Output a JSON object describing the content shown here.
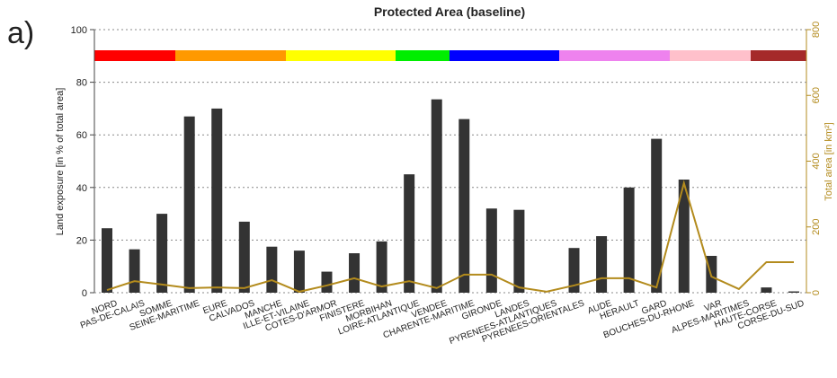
{
  "panel_label": "a)",
  "chart_data": {
    "type": "bar",
    "title": "Protected Area (baseline)",
    "ylabel": "Land exposure [in % of total area]",
    "y2label": "Total area [in km²]",
    "categories": [
      "NORD",
      "PAS-DE-CALAIS",
      "SOMME",
      "SEINE-MARITIME",
      "EURE",
      "CALVADOS",
      "MANCHE",
      "ILLE-ET-VILAINE",
      "COTES-D'ARMOR",
      "FINISTERE",
      "MORBIHAN",
      "LOIRE-ATLANTIQUE",
      "VENDEE",
      "CHARENTE-MARITIME",
      "GIRONDE",
      "LANDES",
      "PYRENEES-ATLANTIQUES",
      "PYRENEES-ORIENTALES",
      "AUDE",
      "HERAULT",
      "GARD",
      "BOUCHES-DU-RHONE",
      "VAR",
      "ALPES-MARITIMES",
      "HAUTE-CORSE",
      "CORSE-DU-SUD"
    ],
    "series": [
      {
        "color": "#333333",
        "values": [
          24.5,
          16.5,
          30,
          67,
          70,
          27,
          17.5,
          16,
          8,
          15,
          19.5,
          45,
          73.5,
          66,
          32,
          31.5,
          0,
          17,
          21.5,
          40,
          58.5,
          43,
          14,
          0,
          2,
          0.5
        ]
      },
      {
        "color": "#b38b1d",
        "axis": "y2",
        "values": [
          8,
          35,
          25,
          14,
          16,
          14,
          38,
          3,
          22,
          44,
          19,
          35,
          14,
          55,
          55,
          16,
          3,
          22,
          44,
          44,
          16,
          333,
          49,
          11,
          93,
          93
        ]
      }
    ],
    "ylim": [
      0,
      100
    ],
    "yticks": [
      0,
      20,
      40,
      60,
      80,
      100
    ],
    "y2lim": [
      0,
      800
    ],
    "y2ticks": [
      0,
      200,
      400,
      600,
      800
    ]
  }
}
